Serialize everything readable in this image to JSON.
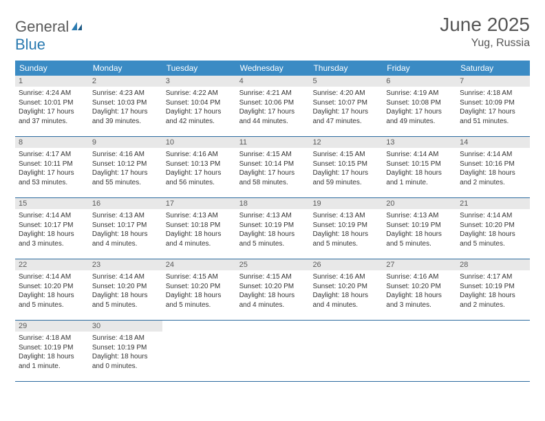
{
  "logo": {
    "text1": "General",
    "text2": "Blue"
  },
  "title": "June 2025",
  "location": "Yug, Russia",
  "weekdays": [
    "Sunday",
    "Monday",
    "Tuesday",
    "Wednesday",
    "Thursday",
    "Friday",
    "Saturday"
  ],
  "colors": {
    "header_bg": "#3b8bc4",
    "header_text": "#ffffff",
    "divider": "#2a6a9e",
    "daynum_bg": "#e8e8e8",
    "daynum_text": "#5a5a5a",
    "body_text": "#333333",
    "title_text": "#555555",
    "logo_gray": "#5a5a5a",
    "logo_blue": "#2a7ab0"
  },
  "days": [
    {
      "n": "1",
      "sunrise": "4:24 AM",
      "sunset": "10:01 PM",
      "daylight": "17 hours and 37 minutes."
    },
    {
      "n": "2",
      "sunrise": "4:23 AM",
      "sunset": "10:03 PM",
      "daylight": "17 hours and 39 minutes."
    },
    {
      "n": "3",
      "sunrise": "4:22 AM",
      "sunset": "10:04 PM",
      "daylight": "17 hours and 42 minutes."
    },
    {
      "n": "4",
      "sunrise": "4:21 AM",
      "sunset": "10:06 PM",
      "daylight": "17 hours and 44 minutes."
    },
    {
      "n": "5",
      "sunrise": "4:20 AM",
      "sunset": "10:07 PM",
      "daylight": "17 hours and 47 minutes."
    },
    {
      "n": "6",
      "sunrise": "4:19 AM",
      "sunset": "10:08 PM",
      "daylight": "17 hours and 49 minutes."
    },
    {
      "n": "7",
      "sunrise": "4:18 AM",
      "sunset": "10:09 PM",
      "daylight": "17 hours and 51 minutes."
    },
    {
      "n": "8",
      "sunrise": "4:17 AM",
      "sunset": "10:11 PM",
      "daylight": "17 hours and 53 minutes."
    },
    {
      "n": "9",
      "sunrise": "4:16 AM",
      "sunset": "10:12 PM",
      "daylight": "17 hours and 55 minutes."
    },
    {
      "n": "10",
      "sunrise": "4:16 AM",
      "sunset": "10:13 PM",
      "daylight": "17 hours and 56 minutes."
    },
    {
      "n": "11",
      "sunrise": "4:15 AM",
      "sunset": "10:14 PM",
      "daylight": "17 hours and 58 minutes."
    },
    {
      "n": "12",
      "sunrise": "4:15 AM",
      "sunset": "10:15 PM",
      "daylight": "17 hours and 59 minutes."
    },
    {
      "n": "13",
      "sunrise": "4:14 AM",
      "sunset": "10:15 PM",
      "daylight": "18 hours and 1 minute."
    },
    {
      "n": "14",
      "sunrise": "4:14 AM",
      "sunset": "10:16 PM",
      "daylight": "18 hours and 2 minutes."
    },
    {
      "n": "15",
      "sunrise": "4:14 AM",
      "sunset": "10:17 PM",
      "daylight": "18 hours and 3 minutes."
    },
    {
      "n": "16",
      "sunrise": "4:13 AM",
      "sunset": "10:17 PM",
      "daylight": "18 hours and 4 minutes."
    },
    {
      "n": "17",
      "sunrise": "4:13 AM",
      "sunset": "10:18 PM",
      "daylight": "18 hours and 4 minutes."
    },
    {
      "n": "18",
      "sunrise": "4:13 AM",
      "sunset": "10:19 PM",
      "daylight": "18 hours and 5 minutes."
    },
    {
      "n": "19",
      "sunrise": "4:13 AM",
      "sunset": "10:19 PM",
      "daylight": "18 hours and 5 minutes."
    },
    {
      "n": "20",
      "sunrise": "4:13 AM",
      "sunset": "10:19 PM",
      "daylight": "18 hours and 5 minutes."
    },
    {
      "n": "21",
      "sunrise": "4:14 AM",
      "sunset": "10:20 PM",
      "daylight": "18 hours and 5 minutes."
    },
    {
      "n": "22",
      "sunrise": "4:14 AM",
      "sunset": "10:20 PM",
      "daylight": "18 hours and 5 minutes."
    },
    {
      "n": "23",
      "sunrise": "4:14 AM",
      "sunset": "10:20 PM",
      "daylight": "18 hours and 5 minutes."
    },
    {
      "n": "24",
      "sunrise": "4:15 AM",
      "sunset": "10:20 PM",
      "daylight": "18 hours and 5 minutes."
    },
    {
      "n": "25",
      "sunrise": "4:15 AM",
      "sunset": "10:20 PM",
      "daylight": "18 hours and 4 minutes."
    },
    {
      "n": "26",
      "sunrise": "4:16 AM",
      "sunset": "10:20 PM",
      "daylight": "18 hours and 4 minutes."
    },
    {
      "n": "27",
      "sunrise": "4:16 AM",
      "sunset": "10:20 PM",
      "daylight": "18 hours and 3 minutes."
    },
    {
      "n": "28",
      "sunrise": "4:17 AM",
      "sunset": "10:19 PM",
      "daylight": "18 hours and 2 minutes."
    },
    {
      "n": "29",
      "sunrise": "4:18 AM",
      "sunset": "10:19 PM",
      "daylight": "18 hours and 1 minute."
    },
    {
      "n": "30",
      "sunrise": "4:18 AM",
      "sunset": "10:19 PM",
      "daylight": "18 hours and 0 minutes."
    }
  ],
  "labels": {
    "sunrise": "Sunrise: ",
    "sunset": "Sunset: ",
    "daylight": "Daylight: "
  },
  "layout": {
    "start_weekday": 0,
    "rows": 5,
    "cols": 7
  }
}
